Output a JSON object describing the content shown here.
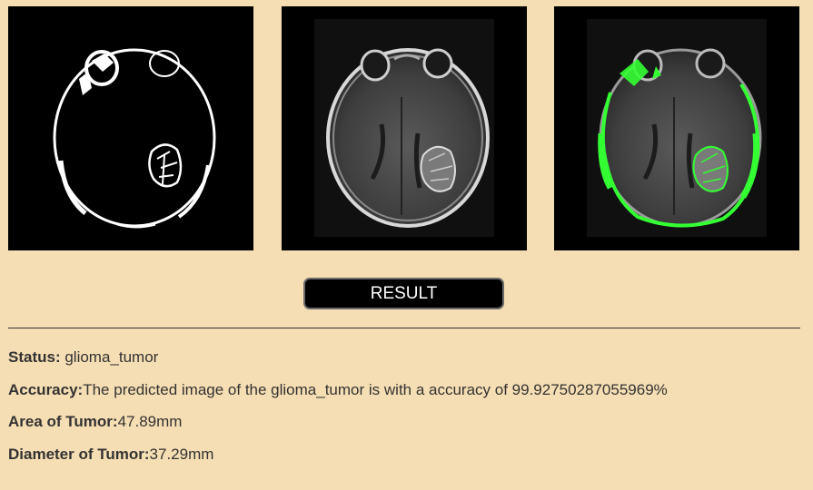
{
  "images": [
    {
      "name": "binary-mask-image",
      "kind": "binary mask"
    },
    {
      "name": "mri-original-image",
      "kind": "original mri"
    },
    {
      "name": "mri-overlay-image",
      "kind": "contour overlay",
      "contour_color": "#33ff33"
    }
  ],
  "result_button": {
    "label": "RESULT"
  },
  "info": {
    "status_label": "Status:",
    "status_value": " glioma_tumor",
    "accuracy_label": "Accuracy:",
    "accuracy_value": "The predicted image of the glioma_tumor is with a accuracy of 99.92750287055969%",
    "area_label": "Area of Tumor:",
    "area_value": "47.89mm",
    "diameter_label": "Diameter of Tumor:",
    "diameter_value": "37.29mm"
  },
  "colors": {
    "background": "#f5deb3",
    "button_bg": "#000000",
    "button_text": "#ffffff",
    "contour": "#33ff33"
  }
}
